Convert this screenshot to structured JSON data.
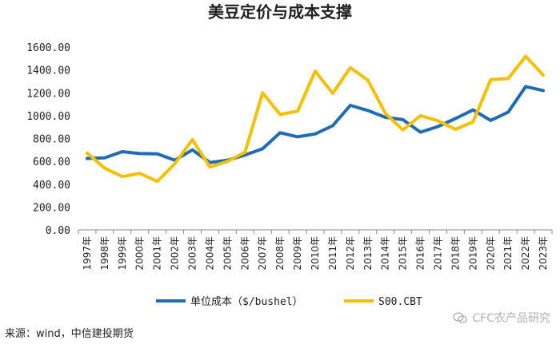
{
  "chart_data": {
    "type": "line",
    "title": "美豆定价与成本支撑",
    "categories": [
      "1997年",
      "1998年",
      "1999年",
      "2000年",
      "2001年",
      "2002年",
      "2003年",
      "2004年",
      "2005年",
      "2006年",
      "2007年",
      "2008年",
      "2009年",
      "2010年",
      "2011年",
      "2012年",
      "2013年",
      "2014年",
      "2015年",
      "2016年",
      "2017年",
      "2018年",
      "2019年",
      "2020年",
      "2021年",
      "2022年",
      "2023年"
    ],
    "y_ticks": [
      "0.00",
      "200.00",
      "400.00",
      "600.00",
      "800.00",
      "1000.00",
      "1200.00",
      "1400.00",
      "1600.00"
    ],
    "ylim": [
      0,
      1600
    ],
    "grid": false,
    "legend_position": "bottom",
    "series": [
      {
        "name": "单位成本（$/bushel）",
        "color": "#1f6bb5",
        "values": [
          625,
          630,
          685,
          668,
          665,
          610,
          700,
          590,
          610,
          655,
          710,
          850,
          815,
          840,
          912,
          1090,
          1045,
          985,
          965,
          855,
          905,
          975,
          1050,
          958,
          1030,
          1255,
          1220
        ]
      },
      {
        "name": "S00.CBT",
        "color": "#f6c000",
        "values": [
          672,
          540,
          467,
          495,
          425,
          580,
          790,
          550,
          600,
          680,
          1200,
          1010,
          1040,
          1390,
          1195,
          1420,
          1310,
          1020,
          875,
          1000,
          955,
          880,
          945,
          1315,
          1325,
          1520,
          1355
        ]
      }
    ]
  },
  "source_text": "来源：wind，中信建投期货",
  "watermark_text": "CFC农产品研究",
  "watermark_icon": "wechat-icon"
}
